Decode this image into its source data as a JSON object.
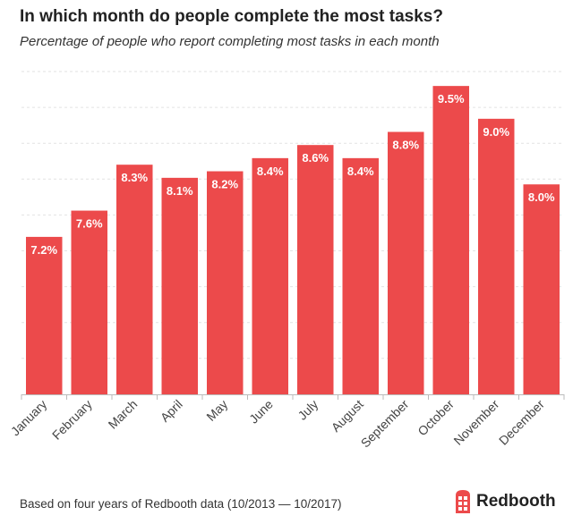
{
  "chart_data": {
    "type": "bar",
    "title": "In which month do people complete the most tasks?",
    "subtitle": "Percentage of people who report completing most tasks in each month",
    "categories": [
      "January",
      "February",
      "March",
      "April",
      "May",
      "June",
      "July",
      "August",
      "September",
      "October",
      "November",
      "December"
    ],
    "values": [
      7.2,
      7.6,
      8.3,
      8.1,
      8.2,
      8.4,
      8.6,
      8.4,
      8.8,
      9.5,
      9.0,
      8.0
    ],
    "data_labels": [
      "7.2%",
      "7.6%",
      "8.3%",
      "8.1%",
      "8.2%",
      "8.4%",
      "8.6%",
      "8.4%",
      "8.8%",
      "9.5%",
      "9.0%",
      "8.0%"
    ],
    "xlabel": "",
    "ylabel": "",
    "ylim": [
      4.8,
      9.72
    ],
    "grid": true,
    "bar_color": "#ec4a4b"
  },
  "footer": "Based on four years of Redbooth data (10/2013 — 10/2017)",
  "logo": {
    "text": "Redbooth",
    "icon": "phone-booth-icon"
  }
}
